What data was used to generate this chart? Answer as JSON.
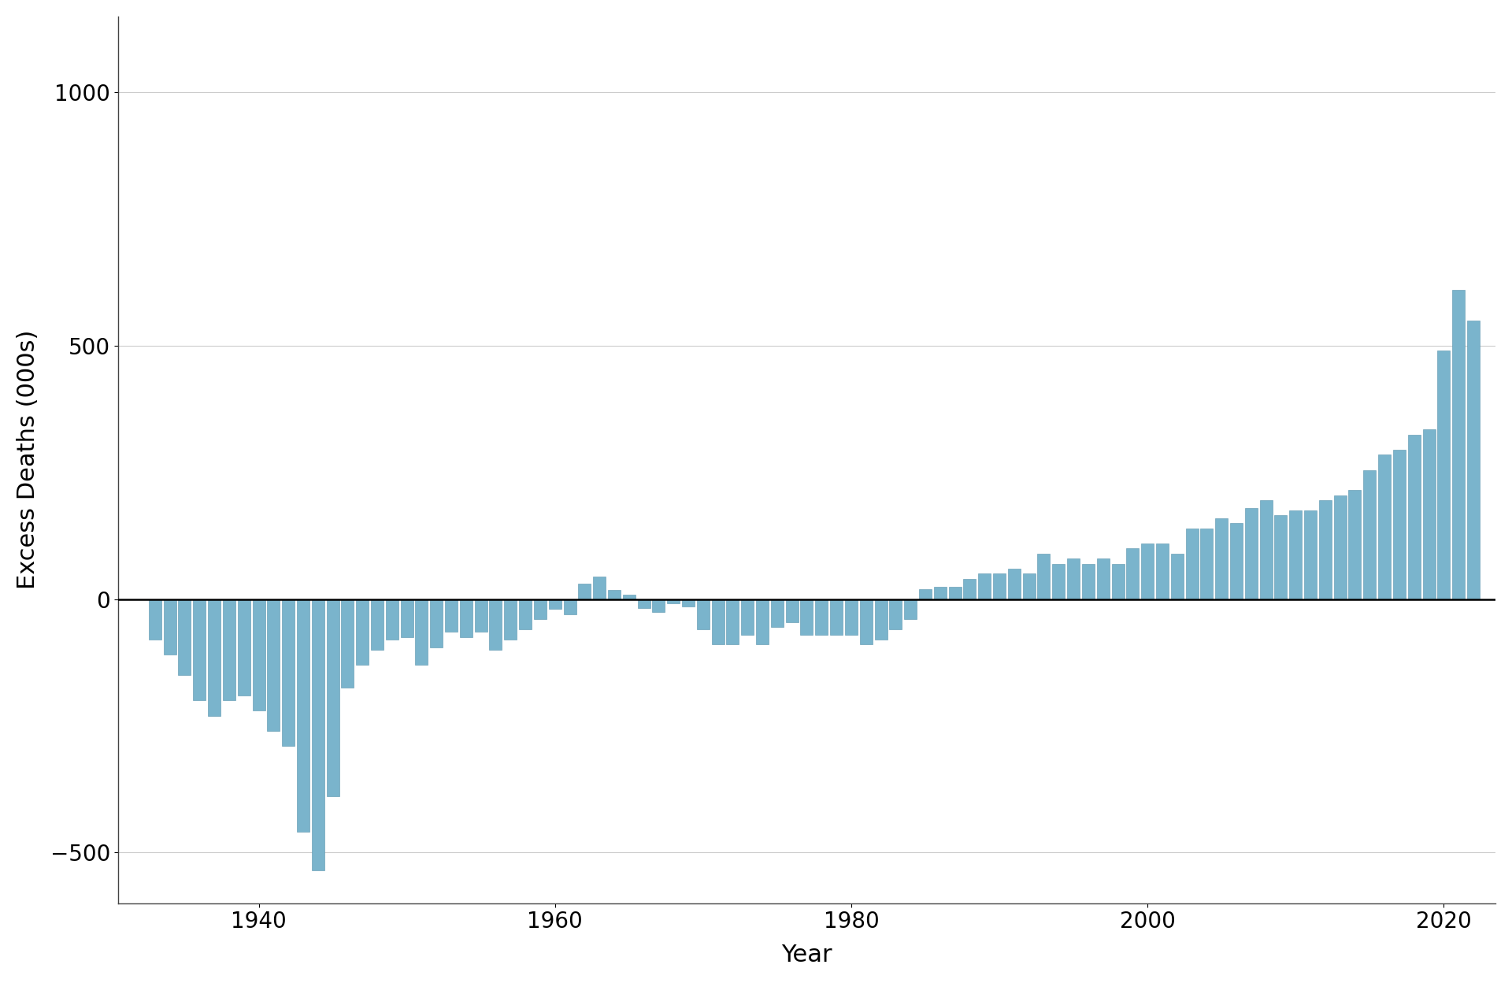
{
  "years": [
    1933,
    1934,
    1935,
    1936,
    1937,
    1938,
    1939,
    1940,
    1941,
    1942,
    1943,
    1944,
    1945,
    1946,
    1947,
    1948,
    1949,
    1950,
    1951,
    1952,
    1953,
    1954,
    1955,
    1956,
    1957,
    1958,
    1959,
    1960,
    1961,
    1962,
    1963,
    1964,
    1965,
    1966,
    1967,
    1968,
    1969,
    1970,
    1971,
    1972,
    1973,
    1974,
    1975,
    1976,
    1977,
    1978,
    1979,
    1980,
    1981,
    1982,
    1983,
    1984,
    1985,
    1986,
    1987,
    1988,
    1989,
    1990,
    1991,
    1992,
    1993,
    1994,
    1995,
    1996,
    1997,
    1998,
    1999,
    2000,
    2001,
    2002,
    2003,
    2004,
    2005,
    2006,
    2007,
    2008,
    2009,
    2010,
    2011,
    2012,
    2013,
    2014,
    2015,
    2016,
    2017,
    2018,
    2019,
    2020,
    2021,
    2022
  ],
  "values": [
    -80,
    -110,
    -150,
    -200,
    -230,
    -200,
    -190,
    -220,
    -260,
    -290,
    -460,
    -535,
    -390,
    -175,
    -130,
    -100,
    -80,
    -75,
    -130,
    -95,
    -65,
    -75,
    -65,
    -100,
    -80,
    -60,
    -40,
    -20,
    -30,
    30,
    45,
    18,
    8,
    -18,
    -25,
    -8,
    -15,
    -60,
    -90,
    -90,
    -70,
    -90,
    -55,
    -45,
    -70,
    -70,
    -70,
    -70,
    -90,
    -80,
    -60,
    -40,
    20,
    25,
    25,
    40,
    50,
    50,
    60,
    50,
    90,
    70,
    80,
    70,
    80,
    70,
    100,
    110,
    110,
    90,
    140,
    140,
    160,
    150,
    180,
    195,
    165,
    175,
    175,
    195,
    205,
    215,
    255,
    285,
    295,
    325,
    335,
    490,
    610,
    550
  ],
  "bar_color": "#7ab4cc",
  "bar_edgecolor": "#5a94ac",
  "xlabel": "Year",
  "ylabel": "Excess Deaths (000s)",
  "ylim_min": -600,
  "ylim_max": 1150,
  "xlim_min": 1930.5,
  "xlim_max": 2023.5,
  "yticks": [
    -500,
    0,
    500,
    1000
  ],
  "xticks": [
    1940,
    1960,
    1980,
    2000,
    2020
  ],
  "grid_color": "#cccccc",
  "background_color": "#ffffff",
  "zero_line_color": "#000000"
}
